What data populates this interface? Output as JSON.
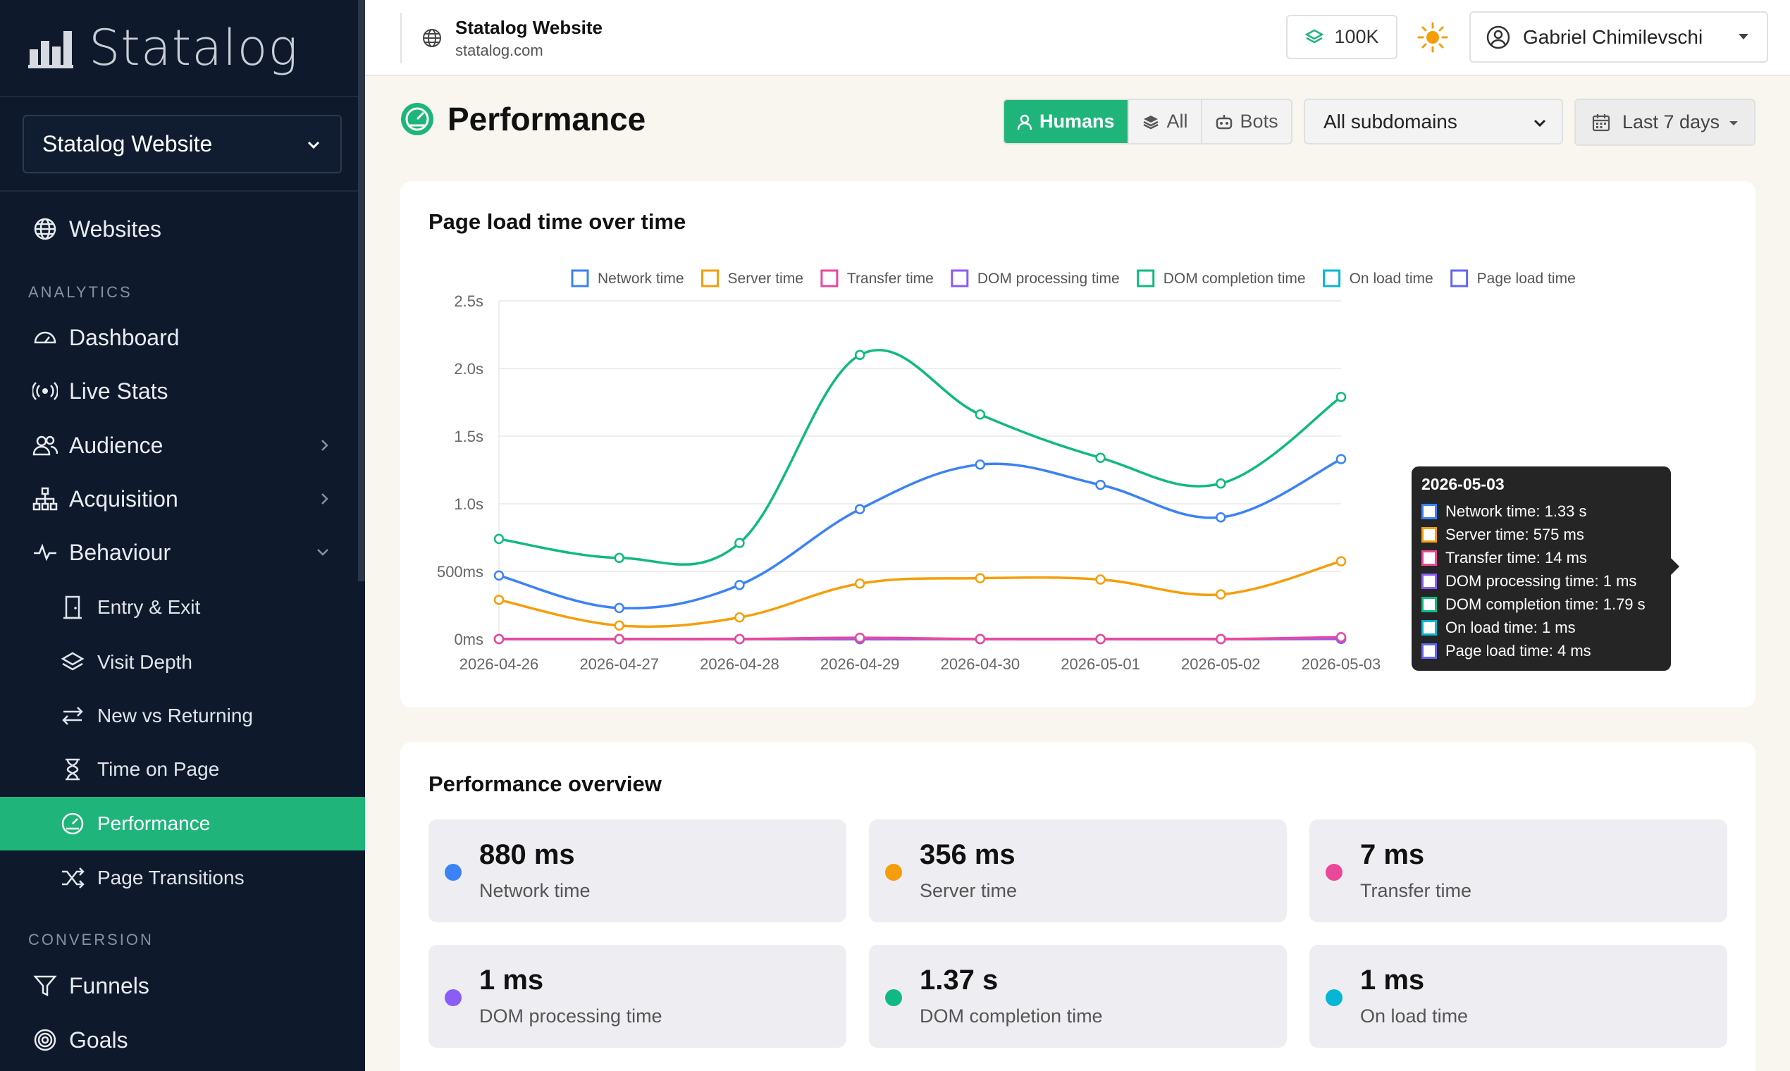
{
  "sidebar": {
    "brand": "Statalog",
    "site_select": "Statalog Website",
    "items": {
      "websites": "Websites",
      "dashboard": "Dashboard",
      "live_stats": "Live Stats",
      "audience": "Audience",
      "acquisition": "Acquisition",
      "behaviour": "Behaviour",
      "funnels": "Funnels",
      "goals": "Goals"
    },
    "section_analytics": "ANALYTICS",
    "section_conversion": "CONVERSION",
    "behaviour_sub": {
      "entry_exit": "Entry & Exit",
      "visit_depth": "Visit Depth",
      "new_vs_returning": "New vs Returning",
      "time_on_page": "Time on Page",
      "performance": "Performance",
      "page_transitions": "Page Transitions"
    },
    "active_item": "Performance"
  },
  "topbar": {
    "site_name": "Statalog Website",
    "site_domain": "statalog.com",
    "badge": "100K",
    "user_name": "Gabriel Chimilevschi"
  },
  "header": {
    "title": "Performance",
    "filters": {
      "humans": "Humans",
      "all": "All",
      "bots": "Bots",
      "active": "Humans"
    },
    "subdomains": "All subdomains",
    "date_range": "Last 7 days"
  },
  "colors": {
    "accent": "#1fb57a",
    "network": "#3b82f6",
    "server": "#f59e0b",
    "transfer": "#ec4899",
    "dom_processing": "#8b5cf6",
    "dom_completion": "#10b981",
    "on_load": "#06b6d4",
    "page_load": "#6366f1"
  },
  "chart_card": {
    "title": "Page load time over time"
  },
  "chart_data": {
    "type": "line",
    "x": [
      "2026-04-26",
      "2026-04-27",
      "2026-04-28",
      "2026-04-29",
      "2026-04-30",
      "2026-05-01",
      "2026-05-02",
      "2026-05-03"
    ],
    "y_unit": "s",
    "ylim": [
      0,
      2.5
    ],
    "y_ticks": [
      "0ms",
      "500ms",
      "1.0s",
      "1.5s",
      "2.0s",
      "2.5s"
    ],
    "legend_position": "top",
    "grid": true,
    "series": [
      {
        "name": "Network time",
        "color": "#3b82f6",
        "values": [
          0.47,
          0.23,
          0.4,
          0.96,
          1.29,
          1.14,
          0.9,
          1.33
        ]
      },
      {
        "name": "Server time",
        "color": "#f59e0b",
        "values": [
          0.29,
          0.1,
          0.16,
          0.41,
          0.45,
          0.44,
          0.33,
          0.575
        ]
      },
      {
        "name": "Transfer time",
        "color": "#ec4899",
        "values": [
          0.0,
          0.0,
          0.0,
          0.01,
          0.0,
          0.0,
          0.0,
          0.014
        ]
      },
      {
        "name": "DOM processing time",
        "color": "#8b5cf6",
        "values": [
          0.0,
          0.0,
          0.0,
          0.0,
          0.0,
          0.0,
          0.0,
          0.001
        ]
      },
      {
        "name": "DOM completion time",
        "color": "#10b981",
        "values": [
          0.74,
          0.6,
          0.71,
          2.1,
          1.66,
          1.34,
          1.15,
          1.79
        ]
      },
      {
        "name": "On load time",
        "color": "#06b6d4",
        "values": [
          0.0,
          0.0,
          0.0,
          0.0,
          0.0,
          0.0,
          0.0,
          0.001
        ]
      },
      {
        "name": "Page load time",
        "color": "#6366f1",
        "values": [
          0.0,
          0.0,
          0.0,
          0.0,
          0.0,
          0.0,
          0.0,
          0.004
        ]
      }
    ],
    "tooltip": {
      "title": "2026-05-03",
      "rows": [
        {
          "text": "Network time: 1.33 s",
          "color": "#3b82f6"
        },
        {
          "text": "Server time: 575 ms",
          "color": "#f59e0b"
        },
        {
          "text": "Transfer time: 14 ms",
          "color": "#ec4899"
        },
        {
          "text": "DOM processing time: 1 ms",
          "color": "#8b5cf6"
        },
        {
          "text": "DOM completion time: 1.79 s",
          "color": "#10b981"
        },
        {
          "text": "On load time: 1 ms",
          "color": "#06b6d4"
        },
        {
          "text": "Page load time: 4 ms",
          "color": "#6366f1"
        }
      ]
    }
  },
  "overview": {
    "title": "Performance overview",
    "stats": [
      {
        "value": "880 ms",
        "label": "Network time",
        "color": "#3b82f6"
      },
      {
        "value": "356 ms",
        "label": "Server time",
        "color": "#f59e0b"
      },
      {
        "value": "7 ms",
        "label": "Transfer time",
        "color": "#ec4899"
      },
      {
        "value": "1 ms",
        "label": "DOM processing time",
        "color": "#8b5cf6"
      },
      {
        "value": "1.37 s",
        "label": "DOM completion time",
        "color": "#10b981"
      },
      {
        "value": "1 ms",
        "label": "On load time",
        "color": "#06b6d4"
      }
    ]
  }
}
